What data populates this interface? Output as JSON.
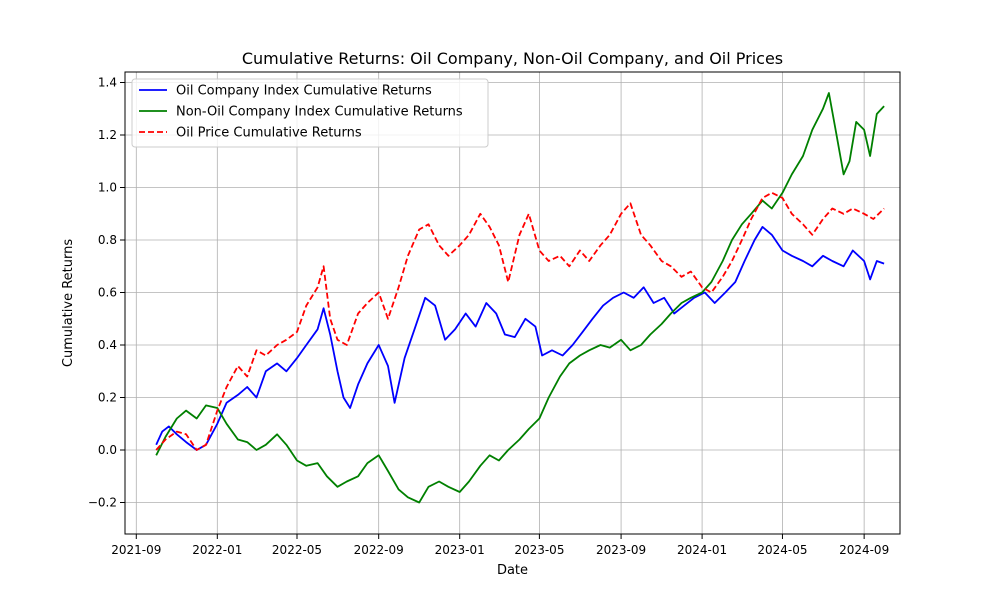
{
  "chart_data": {
    "type": "line",
    "title": "Cumulative Returns: Oil Company, Non-Oil Company, and Oil Prices",
    "xlabel": "Date",
    "ylabel": "Cumulative Returns",
    "grid": true,
    "legend_position": "top-left",
    "xlim": [
      "2021-08-15",
      "2024-10-25"
    ],
    "ylim": [
      -0.32,
      1.44
    ],
    "x_ticks": [
      "2021-09",
      "2022-01",
      "2022-05",
      "2022-09",
      "2023-01",
      "2023-05",
      "2023-09",
      "2024-01",
      "2024-05",
      "2024-09"
    ],
    "x_tick_dates": [
      "2021-09-01",
      "2022-01-01",
      "2022-05-01",
      "2022-09-01",
      "2023-01-01",
      "2023-05-01",
      "2023-09-01",
      "2024-01-01",
      "2024-05-01",
      "2024-09-01"
    ],
    "y_ticks": [
      "−0.2",
      "0.0",
      "0.2",
      "0.4",
      "0.6",
      "0.8",
      "1.0",
      "1.2",
      "1.4"
    ],
    "y_tick_values": [
      -0.2,
      0.0,
      0.2,
      0.4,
      0.6,
      0.8,
      1.0,
      1.2,
      1.4
    ],
    "series": [
      {
        "name": "Oil Company Index Cumulative Returns",
        "color": "#0000ff",
        "style": "solid",
        "points": [
          [
            "2021-10-01",
            0.02
          ],
          [
            "2021-10-10",
            0.07
          ],
          [
            "2021-10-20",
            0.09
          ],
          [
            "2021-11-01",
            0.06
          ],
          [
            "2021-11-15",
            0.03
          ],
          [
            "2021-12-01",
            0.0
          ],
          [
            "2021-12-15",
            0.02
          ],
          [
            "2022-01-01",
            0.1
          ],
          [
            "2022-01-15",
            0.18
          ],
          [
            "2022-02-01",
            0.21
          ],
          [
            "2022-02-15",
            0.24
          ],
          [
            "2022-03-01",
            0.2
          ],
          [
            "2022-03-15",
            0.3
          ],
          [
            "2022-04-01",
            0.33
          ],
          [
            "2022-04-15",
            0.3
          ],
          [
            "2022-05-01",
            0.35
          ],
          [
            "2022-05-15",
            0.4
          ],
          [
            "2022-06-01",
            0.46
          ],
          [
            "2022-06-10",
            0.54
          ],
          [
            "2022-06-20",
            0.44
          ],
          [
            "2022-07-01",
            0.3
          ],
          [
            "2022-07-10",
            0.2
          ],
          [
            "2022-07-20",
            0.16
          ],
          [
            "2022-08-01",
            0.25
          ],
          [
            "2022-08-15",
            0.33
          ],
          [
            "2022-09-01",
            0.4
          ],
          [
            "2022-09-15",
            0.32
          ],
          [
            "2022-09-25",
            0.18
          ],
          [
            "2022-10-10",
            0.35
          ],
          [
            "2022-10-25",
            0.46
          ],
          [
            "2022-11-10",
            0.58
          ],
          [
            "2022-11-25",
            0.55
          ],
          [
            "2022-12-10",
            0.42
          ],
          [
            "2022-12-25",
            0.46
          ],
          [
            "2023-01-10",
            0.52
          ],
          [
            "2023-01-25",
            0.47
          ],
          [
            "2023-02-10",
            0.56
          ],
          [
            "2023-02-25",
            0.52
          ],
          [
            "2023-03-10",
            0.44
          ],
          [
            "2023-03-25",
            0.43
          ],
          [
            "2023-04-10",
            0.5
          ],
          [
            "2023-04-25",
            0.47
          ],
          [
            "2023-05-05",
            0.36
          ],
          [
            "2023-05-20",
            0.38
          ],
          [
            "2023-06-05",
            0.36
          ],
          [
            "2023-06-20",
            0.4
          ],
          [
            "2023-07-05",
            0.45
          ],
          [
            "2023-07-20",
            0.5
          ],
          [
            "2023-08-05",
            0.55
          ],
          [
            "2023-08-20",
            0.58
          ],
          [
            "2023-09-05",
            0.6
          ],
          [
            "2023-09-20",
            0.58
          ],
          [
            "2023-10-05",
            0.62
          ],
          [
            "2023-10-20",
            0.56
          ],
          [
            "2023-11-05",
            0.58
          ],
          [
            "2023-11-20",
            0.52
          ],
          [
            "2023-12-05",
            0.55
          ],
          [
            "2023-12-20",
            0.58
          ],
          [
            "2024-01-05",
            0.6
          ],
          [
            "2024-01-20",
            0.56
          ],
          [
            "2024-02-05",
            0.6
          ],
          [
            "2024-02-20",
            0.64
          ],
          [
            "2024-03-05",
            0.72
          ],
          [
            "2024-03-20",
            0.8
          ],
          [
            "2024-04-01",
            0.85
          ],
          [
            "2024-04-15",
            0.82
          ],
          [
            "2024-05-01",
            0.76
          ],
          [
            "2024-05-15",
            0.74
          ],
          [
            "2024-06-01",
            0.72
          ],
          [
            "2024-06-15",
            0.7
          ],
          [
            "2024-07-01",
            0.74
          ],
          [
            "2024-07-15",
            0.72
          ],
          [
            "2024-08-01",
            0.7
          ],
          [
            "2024-08-15",
            0.76
          ],
          [
            "2024-09-01",
            0.72
          ],
          [
            "2024-09-10",
            0.65
          ],
          [
            "2024-09-20",
            0.72
          ],
          [
            "2024-10-01",
            0.71
          ]
        ]
      },
      {
        "name": "Non-Oil Company Index Cumulative Returns",
        "color": "#008000",
        "style": "solid",
        "points": [
          [
            "2021-10-01",
            -0.02
          ],
          [
            "2021-10-15",
            0.05
          ],
          [
            "2021-11-01",
            0.12
          ],
          [
            "2021-11-15",
            0.15
          ],
          [
            "2021-12-01",
            0.12
          ],
          [
            "2021-12-15",
            0.17
          ],
          [
            "2022-01-01",
            0.16
          ],
          [
            "2022-01-15",
            0.1
          ],
          [
            "2022-02-01",
            0.04
          ],
          [
            "2022-02-15",
            0.03
          ],
          [
            "2022-03-01",
            0.0
          ],
          [
            "2022-03-15",
            0.02
          ],
          [
            "2022-04-01",
            0.06
          ],
          [
            "2022-04-15",
            0.02
          ],
          [
            "2022-05-01",
            -0.04
          ],
          [
            "2022-05-15",
            -0.06
          ],
          [
            "2022-06-01",
            -0.05
          ],
          [
            "2022-06-15",
            -0.1
          ],
          [
            "2022-07-01",
            -0.14
          ],
          [
            "2022-07-15",
            -0.12
          ],
          [
            "2022-08-01",
            -0.1
          ],
          [
            "2022-08-15",
            -0.05
          ],
          [
            "2022-09-01",
            -0.02
          ],
          [
            "2022-09-15",
            -0.08
          ],
          [
            "2022-10-01",
            -0.15
          ],
          [
            "2022-10-15",
            -0.18
          ],
          [
            "2022-11-01",
            -0.2
          ],
          [
            "2022-11-15",
            -0.14
          ],
          [
            "2022-12-01",
            -0.12
          ],
          [
            "2022-12-15",
            -0.14
          ],
          [
            "2023-01-01",
            -0.16
          ],
          [
            "2023-01-15",
            -0.12
          ],
          [
            "2023-02-01",
            -0.06
          ],
          [
            "2023-02-15",
            -0.02
          ],
          [
            "2023-03-01",
            -0.04
          ],
          [
            "2023-03-15",
            0.0
          ],
          [
            "2023-04-01",
            0.04
          ],
          [
            "2023-04-15",
            0.08
          ],
          [
            "2023-05-01",
            0.12
          ],
          [
            "2023-05-15",
            0.2
          ],
          [
            "2023-06-01",
            0.28
          ],
          [
            "2023-06-15",
            0.33
          ],
          [
            "2023-07-01",
            0.36
          ],
          [
            "2023-07-15",
            0.38
          ],
          [
            "2023-08-01",
            0.4
          ],
          [
            "2023-08-15",
            0.39
          ],
          [
            "2023-09-01",
            0.42
          ],
          [
            "2023-09-15",
            0.38
          ],
          [
            "2023-10-01",
            0.4
          ],
          [
            "2023-10-15",
            0.44
          ],
          [
            "2023-11-01",
            0.48
          ],
          [
            "2023-11-15",
            0.52
          ],
          [
            "2023-12-01",
            0.56
          ],
          [
            "2023-12-15",
            0.58
          ],
          [
            "2024-01-01",
            0.6
          ],
          [
            "2024-01-15",
            0.64
          ],
          [
            "2024-02-01",
            0.72
          ],
          [
            "2024-02-15",
            0.8
          ],
          [
            "2024-03-01",
            0.86
          ],
          [
            "2024-03-15",
            0.9
          ],
          [
            "2024-04-01",
            0.95
          ],
          [
            "2024-04-15",
            0.92
          ],
          [
            "2024-05-01",
            0.98
          ],
          [
            "2024-05-15",
            1.05
          ],
          [
            "2024-06-01",
            1.12
          ],
          [
            "2024-06-15",
            1.22
          ],
          [
            "2024-07-01",
            1.3
          ],
          [
            "2024-07-10",
            1.36
          ],
          [
            "2024-07-20",
            1.22
          ],
          [
            "2024-08-01",
            1.05
          ],
          [
            "2024-08-10",
            1.1
          ],
          [
            "2024-08-20",
            1.25
          ],
          [
            "2024-09-01",
            1.22
          ],
          [
            "2024-09-10",
            1.12
          ],
          [
            "2024-09-20",
            1.28
          ],
          [
            "2024-10-01",
            1.31
          ]
        ]
      },
      {
        "name": "Oil Price Cumulative Returns",
        "color": "#ff0000",
        "style": "dashed",
        "points": [
          [
            "2021-10-01",
            0.0
          ],
          [
            "2021-10-15",
            0.04
          ],
          [
            "2021-11-01",
            0.07
          ],
          [
            "2021-11-15",
            0.06
          ],
          [
            "2021-12-01",
            0.0
          ],
          [
            "2021-12-15",
            0.02
          ],
          [
            "2022-01-01",
            0.15
          ],
          [
            "2022-01-15",
            0.24
          ],
          [
            "2022-02-01",
            0.32
          ],
          [
            "2022-02-15",
            0.28
          ],
          [
            "2022-03-01",
            0.38
          ],
          [
            "2022-03-15",
            0.36
          ],
          [
            "2022-04-01",
            0.4
          ],
          [
            "2022-04-15",
            0.42
          ],
          [
            "2022-05-01",
            0.45
          ],
          [
            "2022-05-15",
            0.55
          ],
          [
            "2022-06-01",
            0.62
          ],
          [
            "2022-06-10",
            0.7
          ],
          [
            "2022-06-20",
            0.5
          ],
          [
            "2022-07-01",
            0.42
          ],
          [
            "2022-07-15",
            0.4
          ],
          [
            "2022-08-01",
            0.52
          ],
          [
            "2022-08-15",
            0.56
          ],
          [
            "2022-09-01",
            0.6
          ],
          [
            "2022-09-15",
            0.5
          ],
          [
            "2022-10-01",
            0.62
          ],
          [
            "2022-10-15",
            0.74
          ],
          [
            "2022-11-01",
            0.84
          ],
          [
            "2022-11-15",
            0.86
          ],
          [
            "2022-12-01",
            0.78
          ],
          [
            "2022-12-15",
            0.74
          ],
          [
            "2023-01-01",
            0.78
          ],
          [
            "2023-01-15",
            0.82
          ],
          [
            "2023-02-01",
            0.9
          ],
          [
            "2023-02-15",
            0.85
          ],
          [
            "2023-03-01",
            0.78
          ],
          [
            "2023-03-15",
            0.64
          ],
          [
            "2023-04-01",
            0.82
          ],
          [
            "2023-04-15",
            0.9
          ],
          [
            "2023-05-01",
            0.76
          ],
          [
            "2023-05-15",
            0.72
          ],
          [
            "2023-06-01",
            0.74
          ],
          [
            "2023-06-15",
            0.7
          ],
          [
            "2023-07-01",
            0.76
          ],
          [
            "2023-07-15",
            0.72
          ],
          [
            "2023-08-01",
            0.78
          ],
          [
            "2023-08-15",
            0.82
          ],
          [
            "2023-09-01",
            0.9
          ],
          [
            "2023-09-15",
            0.94
          ],
          [
            "2023-10-01",
            0.82
          ],
          [
            "2023-10-15",
            0.78
          ],
          [
            "2023-11-01",
            0.72
          ],
          [
            "2023-11-15",
            0.7
          ],
          [
            "2023-12-01",
            0.66
          ],
          [
            "2023-12-15",
            0.68
          ],
          [
            "2024-01-01",
            0.62
          ],
          [
            "2024-01-15",
            0.6
          ],
          [
            "2024-02-01",
            0.66
          ],
          [
            "2024-02-15",
            0.72
          ],
          [
            "2024-03-01",
            0.8
          ],
          [
            "2024-03-15",
            0.88
          ],
          [
            "2024-04-01",
            0.96
          ],
          [
            "2024-04-15",
            0.98
          ],
          [
            "2024-05-01",
            0.96
          ],
          [
            "2024-05-15",
            0.9
          ],
          [
            "2024-06-01",
            0.86
          ],
          [
            "2024-06-15",
            0.82
          ],
          [
            "2024-07-01",
            0.88
          ],
          [
            "2024-07-15",
            0.92
          ],
          [
            "2024-08-01",
            0.9
          ],
          [
            "2024-08-15",
            0.92
          ],
          [
            "2024-09-01",
            0.9
          ],
          [
            "2024-09-15",
            0.88
          ],
          [
            "2024-10-01",
            0.92
          ]
        ]
      }
    ]
  }
}
